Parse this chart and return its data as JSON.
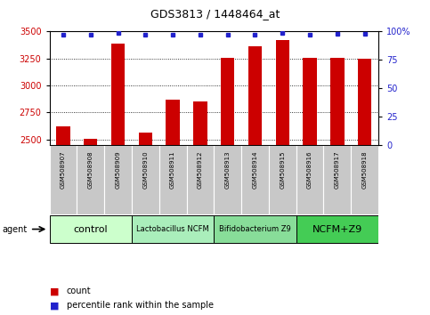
{
  "title": "GDS3813 / 1448464_at",
  "samples": [
    "GSM508907",
    "GSM508908",
    "GSM508909",
    "GSM508910",
    "GSM508911",
    "GSM508912",
    "GSM508913",
    "GSM508914",
    "GSM508915",
    "GSM508916",
    "GSM508917",
    "GSM508918"
  ],
  "counts": [
    2620,
    2510,
    3390,
    2560,
    2870,
    2850,
    3255,
    3365,
    3420,
    3255,
    3255,
    3245
  ],
  "percentiles": [
    97,
    97,
    99,
    97,
    97,
    97,
    97,
    97,
    99,
    97,
    98,
    98
  ],
  "ylim_left": [
    2450,
    3500
  ],
  "ylim_right": [
    0,
    100
  ],
  "yticks_left": [
    2500,
    2750,
    3000,
    3250,
    3500
  ],
  "yticks_right": [
    0,
    25,
    50,
    75,
    100
  ],
  "groups": [
    {
      "label": "control",
      "start": 0,
      "end": 2,
      "color": "#ccffcc"
    },
    {
      "label": "Lactobacillus NCFM",
      "start": 3,
      "end": 5,
      "color": "#aaeebb"
    },
    {
      "label": "Bifidobacterium Z9",
      "start": 6,
      "end": 8,
      "color": "#88dd99"
    },
    {
      "label": "NCFM+Z9",
      "start": 9,
      "end": 11,
      "color": "#44cc55"
    }
  ],
  "bar_color": "#cc0000",
  "dot_color": "#2222cc",
  "tick_bg_color": "#c8c8c8",
  "ylabel_left_color": "#cc0000",
  "ylabel_right_color": "#2222cc",
  "title_fontsize": 9,
  "tick_fontsize": 7,
  "sample_fontsize": 5,
  "group_fontsize_large": 8,
  "group_fontsize_small": 6,
  "legend_fontsize": 7,
  "agent_fontsize": 7,
  "bar_width": 0.5
}
